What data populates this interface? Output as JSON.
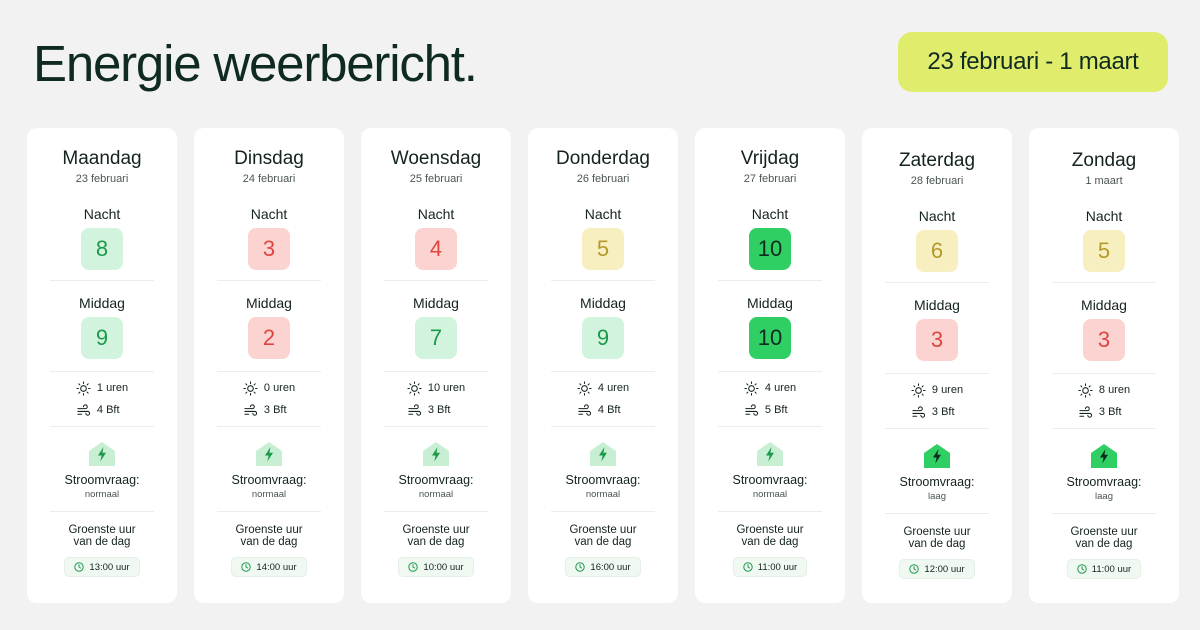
{
  "title": "Energie weerbericht.",
  "date_range": "23 februari - 1 maart",
  "labels": {
    "night": "Nacht",
    "afternoon": "Middag",
    "demand": "Stroomvraag:",
    "greenest_line1": "Groenste uur",
    "greenest_line2": "van de dag"
  },
  "colors": {
    "background": "#f2f2f2",
    "badge": "#e0ec6c",
    "score_red": "#fbd4d2",
    "score_light_green": "#d2f3dd",
    "score_yellow": "#f7efbf",
    "score_green": "#2fcf63",
    "demand_normal": "#c8efd4",
    "demand_low": "#2fcf63"
  },
  "days": [
    {
      "name": "Maandag",
      "date": "23 februari",
      "night": "8",
      "night_level": "light-green",
      "afternoon": "9",
      "afternoon_level": "light-green",
      "sun": "1 uren",
      "wind": "4 Bft",
      "demand": "normaal",
      "demand_icon": "house-lightning-light-icon",
      "green_hour": "13:00 uur"
    },
    {
      "name": "Dinsdag",
      "date": "24 februari",
      "night": "3",
      "night_level": "red",
      "afternoon": "2",
      "afternoon_level": "red",
      "sun": "0 uren",
      "wind": "3 Bft",
      "demand": "normaal",
      "demand_icon": "house-lightning-light-icon",
      "green_hour": "14:00 uur"
    },
    {
      "name": "Woensdag",
      "date": "25 februari",
      "night": "4",
      "night_level": "red",
      "afternoon": "7",
      "afternoon_level": "light-green",
      "sun": "10 uren",
      "wind": "3 Bft",
      "demand": "normaal",
      "demand_icon": "house-lightning-light-icon",
      "green_hour": "10:00 uur"
    },
    {
      "name": "Donderdag",
      "date": "26 februari",
      "night": "5",
      "night_level": "yellow",
      "afternoon": "9",
      "afternoon_level": "light-green",
      "sun": "4 uren",
      "wind": "4 Bft",
      "demand": "normaal",
      "demand_icon": "house-lightning-light-icon",
      "green_hour": "16:00 uur"
    },
    {
      "name": "Vrijdag",
      "date": "27 februari",
      "night": "10",
      "night_level": "green",
      "afternoon": "10",
      "afternoon_level": "green",
      "sun": "4 uren",
      "wind": "5 Bft",
      "demand": "normaal",
      "demand_icon": "house-lightning-light-icon",
      "green_hour": "11:00 uur"
    },
    {
      "name": "Zaterdag",
      "date": "28 februari",
      "night": "6",
      "night_level": "yellow",
      "afternoon": "3",
      "afternoon_level": "red",
      "sun": "9 uren",
      "wind": "3 Bft",
      "demand": "laag",
      "demand_icon": "house-lightning-dark-icon",
      "green_hour": "12:00 uur"
    },
    {
      "name": "Zondag",
      "date": "1 maart",
      "night": "5",
      "night_level": "yellow",
      "afternoon": "3",
      "afternoon_level": "red",
      "sun": "8 uren",
      "wind": "3 Bft",
      "demand": "laag",
      "demand_icon": "house-lightning-dark-icon",
      "green_hour": "11:00 uur"
    }
  ]
}
